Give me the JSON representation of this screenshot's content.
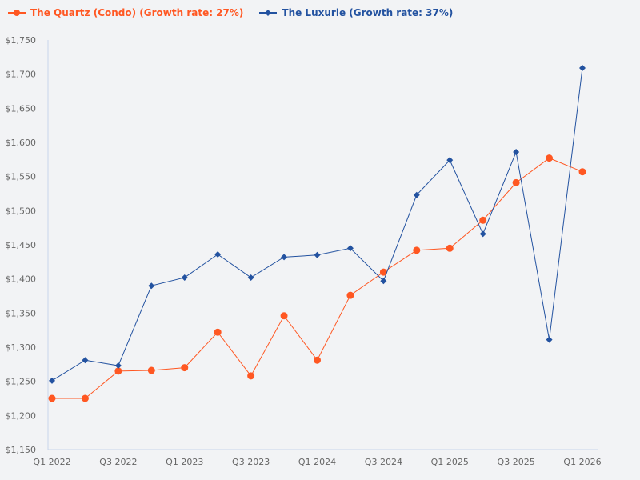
{
  "chart_data": {
    "type": "line",
    "title": "",
    "xlabel": "",
    "ylabel": "",
    "categories": [
      "Q1 2022",
      "Q2 2022",
      "Q3 2022",
      "Q4 2022",
      "Q1 2023",
      "Q2 2023",
      "Q3 2023",
      "Q4 2023",
      "Q1 2024",
      "Q2 2024",
      "Q3 2024",
      "Q4 2024",
      "Q1 2025",
      "Q2 2025",
      "Q3 2025",
      "Q4 2025",
      "Q1 2026"
    ],
    "ylim": [
      1150,
      1750
    ],
    "yticks": [
      "$1,150",
      "$1,200",
      "$1,250",
      "$1,300",
      "$1,350",
      "$1,400",
      "$1,450",
      "$1,500",
      "$1,550",
      "$1,600",
      "$1,650",
      "$1,700",
      "$1,750"
    ],
    "grid": false,
    "legend_position": "top-left",
    "series": [
      {
        "name": "The Quartz (Condo) (Growth rate: 27%)",
        "color": "#ff5722",
        "marker": "circle",
        "values": [
          1225,
          1225,
          1265,
          1266,
          1270,
          1322,
          1258,
          1346,
          1281,
          1376,
          1410,
          1442,
          1445,
          1486,
          1541,
          1577,
          1557
        ]
      },
      {
        "name": "The Luxurie (Growth rate: 37%)",
        "color": "#2352a0",
        "marker": "diamond",
        "values": [
          1251,
          1281,
          1273,
          1390,
          1402,
          1436,
          1402,
          1432,
          1435,
          1445,
          1397,
          1523,
          1574,
          1466,
          1586,
          1311,
          1709
        ]
      }
    ]
  }
}
